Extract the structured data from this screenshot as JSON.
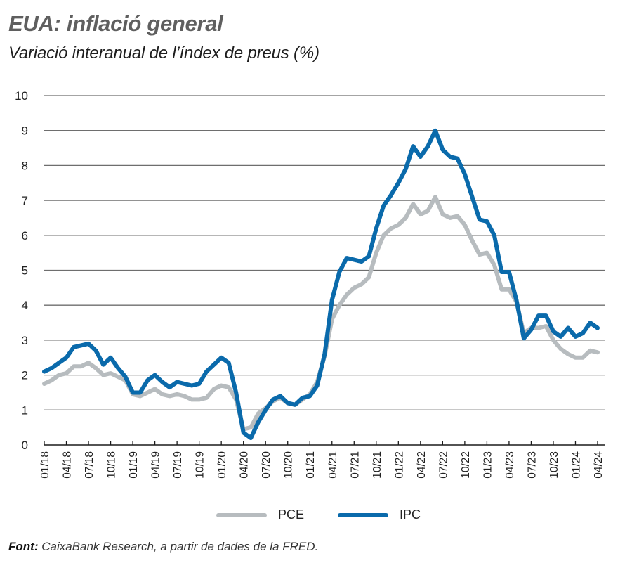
{
  "header": {
    "title": "EUA: inflació general",
    "subtitle": "Variació interanual de l’índex de preus (%)"
  },
  "footer": {
    "source_label": "Font:",
    "source_text": " CaixaBank Research, a partir de dades de la FRED."
  },
  "legend": {
    "items": [
      {
        "label": "PCE",
        "color": "#b7bcbf"
      },
      {
        "label": "IPC",
        "color": "#0a6aab"
      }
    ]
  },
  "chart_data": {
    "type": "line",
    "title": "EUA: inflació general",
    "subtitle": "Variació interanual de l’índex de preus (%)",
    "xlabel": "",
    "ylabel": "",
    "ylim": [
      0,
      10
    ],
    "yticks": [
      0,
      1,
      2,
      3,
      4,
      5,
      6,
      7,
      8,
      9,
      10
    ],
    "grid": true,
    "legend_position": "bottom-center",
    "x_start": "01/18",
    "x_end": "04/24",
    "x_frequency": "monthly",
    "xtick_labels": [
      "01/18",
      "04/18",
      "07/18",
      "10/18",
      "01/19",
      "04/19",
      "07/19",
      "10/19",
      "01/20",
      "04/20",
      "07/20",
      "10/20",
      "01/21",
      "04/21",
      "07/21",
      "10/21",
      "01/22",
      "04/22",
      "07/22",
      "10/22",
      "01/23",
      "04/23",
      "07/23",
      "10/23",
      "01/24",
      "04/24"
    ],
    "series": [
      {
        "name": "PCE",
        "color": "#b7bcbf",
        "values": [
          1.75,
          1.85,
          2.0,
          2.05,
          2.25,
          2.25,
          2.35,
          2.2,
          2.0,
          2.05,
          1.95,
          1.85,
          1.45,
          1.4,
          1.5,
          1.6,
          1.45,
          1.4,
          1.45,
          1.4,
          1.3,
          1.3,
          1.35,
          1.6,
          1.7,
          1.65,
          1.3,
          0.45,
          0.5,
          0.9,
          1.05,
          1.25,
          1.35,
          1.2,
          1.15,
          1.3,
          1.45,
          1.8,
          2.55,
          3.6,
          4.0,
          4.3,
          4.5,
          4.6,
          4.8,
          5.5,
          6.0,
          6.2,
          6.3,
          6.5,
          6.9,
          6.6,
          6.7,
          7.1,
          6.6,
          6.5,
          6.55,
          6.3,
          5.85,
          5.45,
          5.5,
          5.15,
          4.45,
          4.45,
          4.1,
          3.2,
          3.35,
          3.35,
          3.4,
          3.0,
          2.75,
          2.6,
          2.5,
          2.5,
          2.7,
          2.65
        ]
      },
      {
        "name": "IPC",
        "color": "#0a6aab",
        "values": [
          2.1,
          2.2,
          2.35,
          2.5,
          2.8,
          2.85,
          2.9,
          2.7,
          2.3,
          2.5,
          2.2,
          1.95,
          1.5,
          1.5,
          1.85,
          2.0,
          1.8,
          1.65,
          1.8,
          1.75,
          1.7,
          1.75,
          2.1,
          2.3,
          2.5,
          2.35,
          1.5,
          0.35,
          0.2,
          0.65,
          1.0,
          1.3,
          1.4,
          1.2,
          1.15,
          1.35,
          1.4,
          1.7,
          2.6,
          4.15,
          4.95,
          5.35,
          5.3,
          5.25,
          5.4,
          6.2,
          6.85,
          7.15,
          7.5,
          7.9,
          8.55,
          8.25,
          8.55,
          9.0,
          8.45,
          8.25,
          8.2,
          7.75,
          7.1,
          6.45,
          6.4,
          6.0,
          4.95,
          4.95,
          4.15,
          3.05,
          3.3,
          3.7,
          3.7,
          3.25,
          3.1,
          3.35,
          3.1,
          3.2,
          3.5,
          3.35
        ]
      }
    ]
  }
}
